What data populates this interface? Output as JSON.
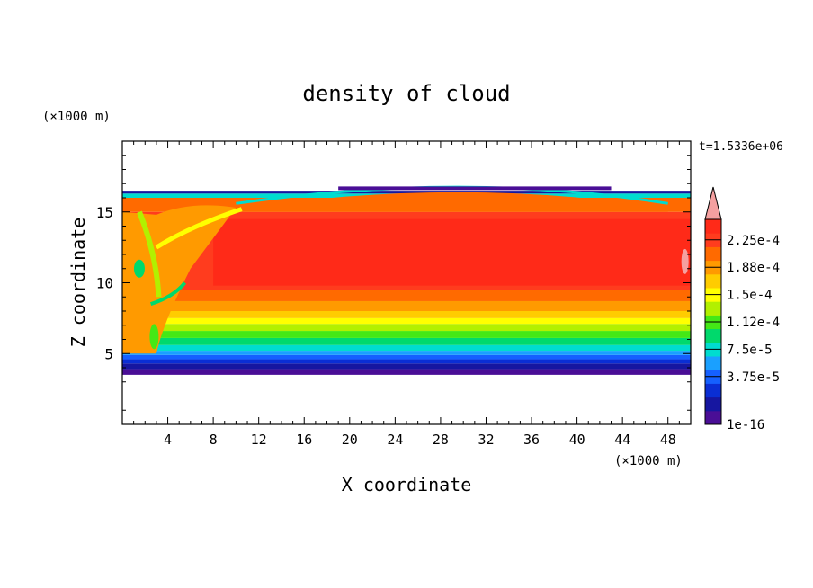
{
  "chart_data": {
    "type": "heatmap",
    "title": "density of cloud",
    "xlabel": "X coordinate",
    "ylabel": "Z coordinate",
    "x_unit": "(×1000 m)",
    "y_unit": "(×1000 m)",
    "time_label": "t=1.5336e+06",
    "xlim": [
      0,
      50
    ],
    "ylim": [
      0,
      20
    ],
    "x_ticks": [
      4,
      8,
      12,
      16,
      20,
      24,
      28,
      32,
      36,
      40,
      44,
      48
    ],
    "x_tick_labels": [
      "4",
      "8",
      "12",
      "16",
      "20",
      "24",
      "28",
      "32",
      "36",
      "40",
      "44",
      "48"
    ],
    "y_ticks": [
      5,
      10,
      15
    ],
    "y_tick_labels": [
      "5",
      "10",
      "15"
    ],
    "colorbar": {
      "labels": [
        "2.25e-4",
        "1.88e-4",
        "1.5e-4",
        "1.12e-4",
        "7.5e-5",
        "3.75e-5",
        "1e-16"
      ],
      "colors": [
        "#4a0e96",
        "#1616a0",
        "#0a2ed4",
        "#1560ff",
        "#1aa0ff",
        "#00dccf",
        "#00d96c",
        "#44e816",
        "#b2f000",
        "#ffff00",
        "#ffcc00",
        "#ff9a00",
        "#ff6a00",
        "#ff3c1e",
        "#ff2a18"
      ],
      "extend_color": "#f5a0a0"
    },
    "field": {
      "cloud_base": 3.5,
      "cloud_top_edge": 16.5,
      "cloud_top_peak": 17.0,
      "core_range": [
        9.5,
        15.5
      ],
      "core_density": "2.25e-4"
    }
  }
}
